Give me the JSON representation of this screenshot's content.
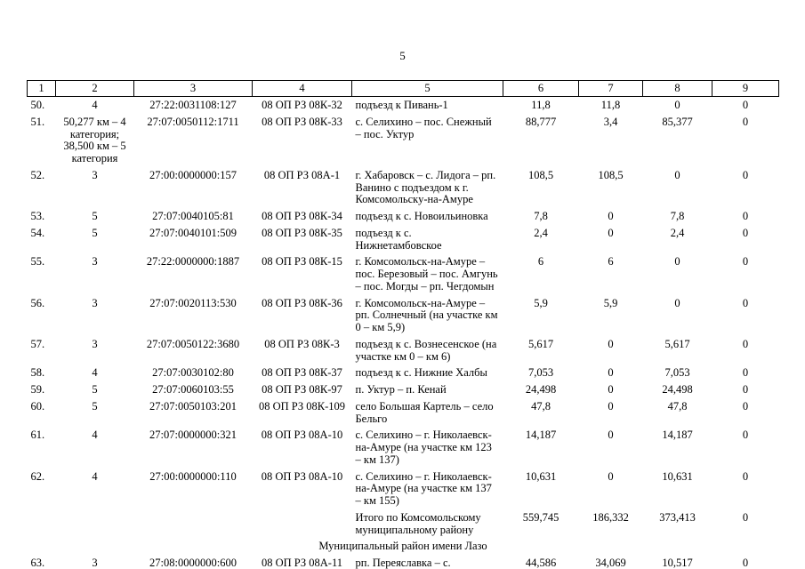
{
  "page": {
    "number": "5"
  },
  "table": {
    "header": [
      "1",
      "2",
      "3",
      "4",
      "5",
      "6",
      "7",
      "8",
      "9"
    ],
    "rows": [
      {
        "type": "data",
        "n": "50.",
        "cat": "4",
        "cad": "27:22:0031108:127",
        "code": "08 ОП РЗ 08К-32",
        "name": "подъезд к Пивань-1",
        "v6": "11,8",
        "v7": "11,8",
        "v8": "0",
        "v9": "0"
      },
      {
        "type": "data",
        "n": "51.",
        "cat": "50,277 км – 4 категория; 38,500 км – 5 категория",
        "cad": "27:07:0050112:1711",
        "code": "08 ОП РЗ 08К-33",
        "name": "с. Селихино – пос. Снежный – пос. Уктур",
        "v6": "88,777",
        "v7": "3,4",
        "v8": "85,377",
        "v9": "0"
      },
      {
        "type": "data",
        "n": "52.",
        "cat": "3",
        "cad": "27:00:0000000:157",
        "code": "08 ОП РЗ 08А-1",
        "name": "г. Хабаровск – с. Лидога – рп. Ванино с подъездом к г. Комсомольску-на-Амуре",
        "v6": "108,5",
        "v7": "108,5",
        "v8": "0",
        "v9": "0"
      },
      {
        "type": "data",
        "n": "53.",
        "cat": "5",
        "cad": "27:07:0040105:81",
        "code": "08 ОП РЗ 08К-34",
        "name": "подъезд к с. Новоильиновка",
        "v6": "7,8",
        "v7": "0",
        "v8": "7,8",
        "v9": "0"
      },
      {
        "type": "data",
        "n": "54.",
        "cat": "5",
        "cad": "27:07:0040101:509",
        "code": "08 ОП РЗ 08К-35",
        "name": "подъезд к с. Нижнетамбовское",
        "v6": "2,4",
        "v7": "0",
        "v8": "2,4",
        "v9": "0"
      },
      {
        "type": "data",
        "n": "55.",
        "cat": "3",
        "cad": "27:22:0000000:1887",
        "code": "08 ОП РЗ 08К-15",
        "name": "г. Комсомольск-на-Амуре – пос. Березовый – пос. Амгунь – пос. Могды – рп. Чегдомын",
        "v6": "6",
        "v7": "6",
        "v8": "0",
        "v9": "0"
      },
      {
        "type": "data",
        "n": "56.",
        "cat": "3",
        "cad": "27:07:0020113:530",
        "code": "08 ОП РЗ 08К-36",
        "name": "г. Комсомольск-на-Амуре – рп. Солнечный (на участке км 0 – км 5,9)",
        "v6": "5,9",
        "v7": "5,9",
        "v8": "0",
        "v9": "0"
      },
      {
        "type": "data",
        "n": "57.",
        "cat": "3",
        "cad": "27:07:0050122:3680",
        "code": "08 ОП РЗ 08К-3",
        "name": "подъезд к с. Вознесенское (на участке км 0 – км 6)",
        "v6": "5,617",
        "v7": "0",
        "v8": "5,617",
        "v9": "0"
      },
      {
        "type": "data",
        "n": "58.",
        "cat": "4",
        "cad": "27:07:0030102:80",
        "code": "08 ОП РЗ 08К-37",
        "name": "подъезд к с. Нижние Халбы",
        "v6": "7,053",
        "v7": "0",
        "v8": "7,053",
        "v9": "0"
      },
      {
        "type": "data",
        "n": "59.",
        "cat": "5",
        "cad": "27:07:0060103:55",
        "code": "08 ОП РЗ 08К-97",
        "name": "п. Уктур – п. Кенай",
        "v6": "24,498",
        "v7": "0",
        "v8": "24,498",
        "v9": "0"
      },
      {
        "type": "data",
        "n": "60.",
        "cat": "5",
        "cad": "27:07:0050103:201",
        "code": "08 ОП РЗ 08К-109",
        "name": "село Большая Картель – село Бельго",
        "v6": "47,8",
        "v7": "0",
        "v8": "47,8",
        "v9": "0"
      },
      {
        "type": "data",
        "n": "61.",
        "cat": "4",
        "cad": "27:07:0000000:321",
        "code": "08 ОП РЗ 08А-10",
        "name": "с. Селихино – г. Николаевск-на-Амуре (на участке км 123 – км 137)",
        "v6": "14,187",
        "v7": "0",
        "v8": "14,187",
        "v9": "0"
      },
      {
        "type": "data",
        "n": "62.",
        "cat": "4",
        "cad": "27:00:0000000:110",
        "code": "08 ОП РЗ 08А-10",
        "name": "с. Селихино – г. Николаевск-на-Амуре (на участке км 137 – км 155)",
        "v6": "10,631",
        "v7": "0",
        "v8": "10,631",
        "v9": "0"
      },
      {
        "type": "summary",
        "n": "",
        "cat": "",
        "cad": "",
        "code": "",
        "name": "Итого по Комсомольскому муниципальному району",
        "v6": "559,745",
        "v7": "186,332",
        "v8": "373,413",
        "v9": "0"
      },
      {
        "type": "section",
        "name": "Муниципальный район имени Лазо"
      },
      {
        "type": "data",
        "n": "63.",
        "cat": "3",
        "cad": "27:08:0000000:600",
        "code": "08 ОП РЗ 08А-11",
        "name": "рп. Переяславка – с. Аргунское",
        "v6": "44,586",
        "v7": "34,069",
        "v8": "10,517",
        "v9": "0"
      }
    ]
  }
}
